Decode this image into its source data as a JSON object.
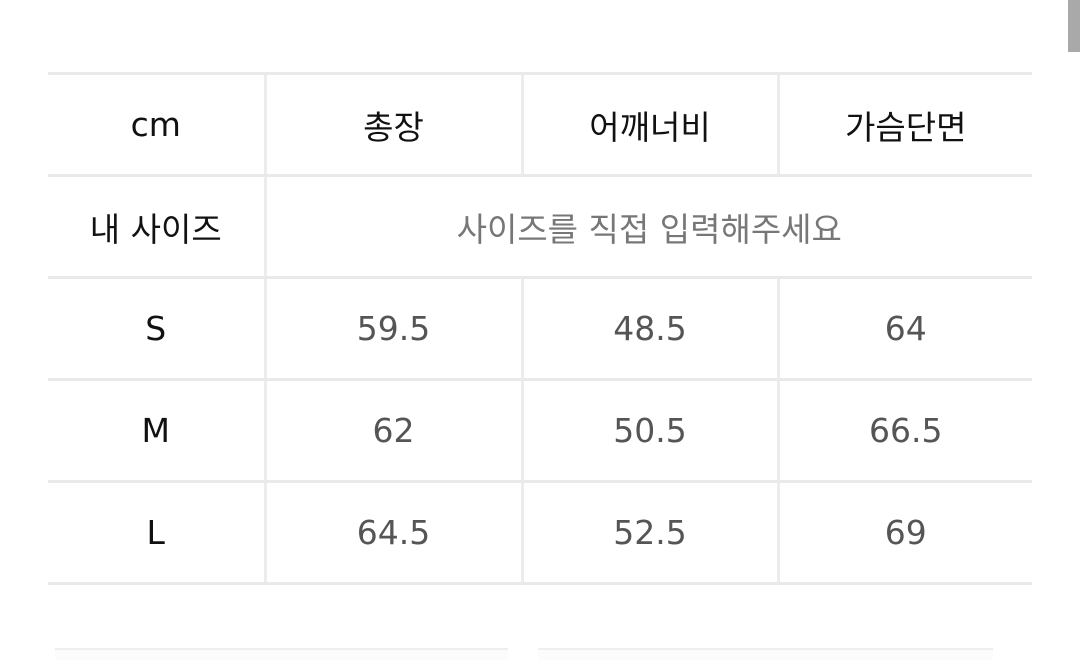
{
  "table": {
    "headers": [
      "cm",
      "총장",
      "어깨너비",
      "가슴단면"
    ],
    "my_size": {
      "label": "내 사이즈",
      "placeholder": "사이즈를 직접 입력해주세요"
    },
    "rows": [
      {
        "size": "S",
        "values": [
          "59.5",
          "48.5",
          "64"
        ]
      },
      {
        "size": "M",
        "values": [
          "62",
          "50.5",
          "66.5"
        ]
      },
      {
        "size": "L",
        "values": [
          "64.5",
          "52.5",
          "69"
        ]
      }
    ]
  }
}
